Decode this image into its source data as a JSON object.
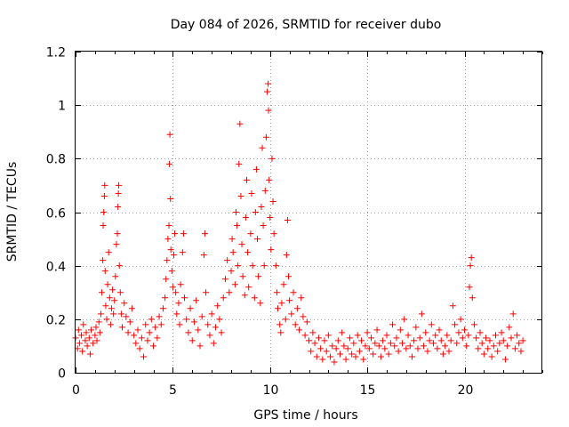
{
  "chart_data": {
    "type": "scatter",
    "title": "Day 084 of 2026, SRMTID for receiver dubo",
    "xlabel": "GPS time / hours",
    "ylabel": "SRMTID / TECUs",
    "xlim": [
      0,
      24
    ],
    "ylim": [
      0,
      1.2
    ],
    "xticks": [
      0,
      5,
      10,
      15,
      20
    ],
    "xtick_labels": [
      "0",
      "5",
      "10",
      "15",
      "20"
    ],
    "yticks": [
      0,
      0.2,
      0.4,
      0.6,
      0.8,
      1,
      1.2
    ],
    "ytick_labels": [
      "0",
      "0.2",
      "0.4",
      "0.6",
      "0.8",
      "1",
      "1.2"
    ],
    "grid": true,
    "marker": "plus",
    "series": [
      {
        "name": "SRMTID",
        "color": "#ff0000",
        "points": [
          [
            0.0,
            0.13
          ],
          [
            0.1,
            0.09
          ],
          [
            0.15,
            0.16
          ],
          [
            0.2,
            0.11
          ],
          [
            0.3,
            0.14
          ],
          [
            0.35,
            0.08
          ],
          [
            0.4,
            0.18
          ],
          [
            0.5,
            0.12
          ],
          [
            0.55,
            0.15
          ],
          [
            0.6,
            0.1
          ],
          [
            0.7,
            0.13
          ],
          [
            0.75,
            0.07
          ],
          [
            0.8,
            0.16
          ],
          [
            0.9,
            0.11
          ],
          [
            1.0,
            0.14
          ],
          [
            1.05,
            0.17
          ],
          [
            1.1,
            0.12
          ],
          [
            1.2,
            0.19
          ],
          [
            1.25,
            0.15
          ],
          [
            1.3,
            0.22
          ],
          [
            1.35,
            0.3
          ],
          [
            1.4,
            0.42
          ],
          [
            1.42,
            0.55
          ],
          [
            1.45,
            0.6
          ],
          [
            1.48,
            0.66
          ],
          [
            1.5,
            0.7
          ],
          [
            1.52,
            0.38
          ],
          [
            1.55,
            0.25
          ],
          [
            1.6,
            0.2
          ],
          [
            1.65,
            0.33
          ],
          [
            1.7,
            0.45
          ],
          [
            1.75,
            0.28
          ],
          [
            1.8,
            0.18
          ],
          [
            1.85,
            0.24
          ],
          [
            1.9,
            0.31
          ],
          [
            1.95,
            0.22
          ],
          [
            2.0,
            0.27
          ],
          [
            2.05,
            0.36
          ],
          [
            2.1,
            0.48
          ],
          [
            2.15,
            0.52
          ],
          [
            2.18,
            0.62
          ],
          [
            2.2,
            0.67
          ],
          [
            2.22,
            0.7
          ],
          [
            2.25,
            0.4
          ],
          [
            2.3,
            0.3
          ],
          [
            2.35,
            0.22
          ],
          [
            2.4,
            0.17
          ],
          [
            2.5,
            0.26
          ],
          [
            2.6,
            0.21
          ],
          [
            2.7,
            0.15
          ],
          [
            2.8,
            0.19
          ],
          [
            2.9,
            0.24
          ],
          [
            3.0,
            0.14
          ],
          [
            3.1,
            0.11
          ],
          [
            3.2,
            0.16
          ],
          [
            3.3,
            0.09
          ],
          [
            3.4,
            0.13
          ],
          [
            3.5,
            0.06
          ],
          [
            3.6,
            0.18
          ],
          [
            3.7,
            0.12
          ],
          [
            3.8,
            0.15
          ],
          [
            3.9,
            0.2
          ],
          [
            4.0,
            0.1
          ],
          [
            4.1,
            0.17
          ],
          [
            4.2,
            0.13
          ],
          [
            4.3,
            0.21
          ],
          [
            4.4,
            0.18
          ],
          [
            4.5,
            0.24
          ],
          [
            4.6,
            0.28
          ],
          [
            4.65,
            0.35
          ],
          [
            4.7,
            0.42
          ],
          [
            4.75,
            0.5
          ],
          [
            4.8,
            0.55
          ],
          [
            4.82,
            0.78
          ],
          [
            4.85,
            0.89
          ],
          [
            4.88,
            0.65
          ],
          [
            4.9,
            0.46
          ],
          [
            4.95,
            0.38
          ],
          [
            5.0,
            0.32
          ],
          [
            5.05,
            0.44
          ],
          [
            5.1,
            0.52
          ],
          [
            5.15,
            0.3
          ],
          [
            5.2,
            0.22
          ],
          [
            5.3,
            0.26
          ],
          [
            5.35,
            0.18
          ],
          [
            5.4,
            0.33
          ],
          [
            5.5,
            0.45
          ],
          [
            5.55,
            0.52
          ],
          [
            5.6,
            0.28
          ],
          [
            5.7,
            0.2
          ],
          [
            5.8,
            0.15
          ],
          [
            5.9,
            0.24
          ],
          [
            6.0,
            0.12
          ],
          [
            6.1,
            0.19
          ],
          [
            6.2,
            0.27
          ],
          [
            6.3,
            0.16
          ],
          [
            6.4,
            0.1
          ],
          [
            6.5,
            0.21
          ],
          [
            6.6,
            0.44
          ],
          [
            6.65,
            0.52
          ],
          [
            6.7,
            0.3
          ],
          [
            6.8,
            0.18
          ],
          [
            6.9,
            0.14
          ],
          [
            7.0,
            0.22
          ],
          [
            7.1,
            0.11
          ],
          [
            7.2,
            0.17
          ],
          [
            7.3,
            0.25
          ],
          [
            7.4,
            0.2
          ],
          [
            7.5,
            0.15
          ],
          [
            7.6,
            0.28
          ],
          [
            7.7,
            0.35
          ],
          [
            7.8,
            0.42
          ],
          [
            7.9,
            0.3
          ],
          [
            8.0,
            0.38
          ],
          [
            8.05,
            0.5
          ],
          [
            8.1,
            0.45
          ],
          [
            8.2,
            0.33
          ],
          [
            8.25,
            0.6
          ],
          [
            8.3,
            0.55
          ],
          [
            8.35,
            0.4
          ],
          [
            8.4,
            0.78
          ],
          [
            8.45,
            0.93
          ],
          [
            8.5,
            0.66
          ],
          [
            8.55,
            0.48
          ],
          [
            8.6,
            0.36
          ],
          [
            8.7,
            0.29
          ],
          [
            8.75,
            0.58
          ],
          [
            8.8,
            0.72
          ],
          [
            8.85,
            0.45
          ],
          [
            8.9,
            0.32
          ],
          [
            9.0,
            0.52
          ],
          [
            9.05,
            0.67
          ],
          [
            9.1,
            0.4
          ],
          [
            9.2,
            0.28
          ],
          [
            9.25,
            0.6
          ],
          [
            9.3,
            0.76
          ],
          [
            9.35,
            0.5
          ],
          [
            9.4,
            0.36
          ],
          [
            9.5,
            0.26
          ],
          [
            9.55,
            0.62
          ],
          [
            9.6,
            0.84
          ],
          [
            9.65,
            0.55
          ],
          [
            9.7,
            0.4
          ],
          [
            9.75,
            0.68
          ],
          [
            9.8,
            0.88
          ],
          [
            9.85,
            1.05
          ],
          [
            9.9,
            1.08
          ],
          [
            9.92,
            0.98
          ],
          [
            9.95,
            0.72
          ],
          [
            10.0,
            0.58
          ],
          [
            10.05,
            0.46
          ],
          [
            10.1,
            0.8
          ],
          [
            10.15,
            0.64
          ],
          [
            10.2,
            0.52
          ],
          [
            10.3,
            0.4
          ],
          [
            10.35,
            0.3
          ],
          [
            10.4,
            0.24
          ],
          [
            10.5,
            0.18
          ],
          [
            10.55,
            0.15
          ],
          [
            10.6,
            0.26
          ],
          [
            10.7,
            0.33
          ],
          [
            10.8,
            0.2
          ],
          [
            10.85,
            0.44
          ],
          [
            10.9,
            0.57
          ],
          [
            10.95,
            0.36
          ],
          [
            11.0,
            0.27
          ],
          [
            11.1,
            0.22
          ],
          [
            11.2,
            0.3
          ],
          [
            11.3,
            0.18
          ],
          [
            11.4,
            0.24
          ],
          [
            11.5,
            0.16
          ],
          [
            11.6,
            0.28
          ],
          [
            11.7,
            0.21
          ],
          [
            11.8,
            0.14
          ],
          [
            11.9,
            0.19
          ],
          [
            12.0,
            0.12
          ],
          [
            12.1,
            0.08
          ],
          [
            12.2,
            0.15
          ],
          [
            12.3,
            0.11
          ],
          [
            12.4,
            0.06
          ],
          [
            12.5,
            0.13
          ],
          [
            12.6,
            0.09
          ],
          [
            12.7,
            0.05
          ],
          [
            12.8,
            0.12
          ],
          [
            12.9,
            0.08
          ],
          [
            13.0,
            0.14
          ],
          [
            13.1,
            0.06
          ],
          [
            13.2,
            0.1
          ],
          [
            13.3,
            0.04
          ],
          [
            13.4,
            0.09
          ],
          [
            13.5,
            0.12
          ],
          [
            13.6,
            0.07
          ],
          [
            13.7,
            0.15
          ],
          [
            13.8,
            0.1
          ],
          [
            13.9,
            0.05
          ],
          [
            14.0,
            0.09
          ],
          [
            14.1,
            0.13
          ],
          [
            14.2,
            0.07
          ],
          [
            14.3,
            0.11
          ],
          [
            14.4,
            0.06
          ],
          [
            14.5,
            0.14
          ],
          [
            14.6,
            0.08
          ],
          [
            14.7,
            0.12
          ],
          [
            14.8,
            0.05
          ],
          [
            14.9,
            0.1
          ],
          [
            15.0,
            0.15
          ],
          [
            15.1,
            0.09
          ],
          [
            15.2,
            0.13
          ],
          [
            15.3,
            0.07
          ],
          [
            15.4,
            0.11
          ],
          [
            15.5,
            0.16
          ],
          [
            15.6,
            0.1
          ],
          [
            15.7,
            0.06
          ],
          [
            15.8,
            0.12
          ],
          [
            15.9,
            0.09
          ],
          [
            16.0,
            0.14
          ],
          [
            16.1,
            0.07
          ],
          [
            16.2,
            0.11
          ],
          [
            16.3,
            0.18
          ],
          [
            16.4,
            0.1
          ],
          [
            16.5,
            0.13
          ],
          [
            16.6,
            0.08
          ],
          [
            16.7,
            0.16
          ],
          [
            16.8,
            0.11
          ],
          [
            16.9,
            0.2
          ],
          [
            17.0,
            0.09
          ],
          [
            17.1,
            0.14
          ],
          [
            17.2,
            0.1
          ],
          [
            17.3,
            0.06
          ],
          [
            17.4,
            0.12
          ],
          [
            17.5,
            0.17
          ],
          [
            17.6,
            0.09
          ],
          [
            17.7,
            0.13
          ],
          [
            17.8,
            0.22
          ],
          [
            17.9,
            0.1
          ],
          [
            18.0,
            0.15
          ],
          [
            18.1,
            0.08
          ],
          [
            18.2,
            0.12
          ],
          [
            18.3,
            0.18
          ],
          [
            18.4,
            0.11
          ],
          [
            18.5,
            0.14
          ],
          [
            18.6,
            0.09
          ],
          [
            18.7,
            0.16
          ],
          [
            18.8,
            0.12
          ],
          [
            18.9,
            0.07
          ],
          [
            19.0,
            0.1
          ],
          [
            19.1,
            0.14
          ],
          [
            19.2,
            0.08
          ],
          [
            19.3,
            0.12
          ],
          [
            19.4,
            0.25
          ],
          [
            19.5,
            0.18
          ],
          [
            19.6,
            0.11
          ],
          [
            19.7,
            0.15
          ],
          [
            19.8,
            0.2
          ],
          [
            19.9,
            0.13
          ],
          [
            20.0,
            0.16
          ],
          [
            20.1,
            0.1
          ],
          [
            20.2,
            0.14
          ],
          [
            20.25,
            0.32
          ],
          [
            20.3,
            0.4
          ],
          [
            20.35,
            0.43
          ],
          [
            20.4,
            0.28
          ],
          [
            20.5,
            0.18
          ],
          [
            20.6,
            0.13
          ],
          [
            20.7,
            0.09
          ],
          [
            20.8,
            0.15
          ],
          [
            20.9,
            0.11
          ],
          [
            21.0,
            0.07
          ],
          [
            21.1,
            0.13
          ],
          [
            21.2,
            0.09
          ],
          [
            21.3,
            0.12
          ],
          [
            21.4,
            0.06
          ],
          [
            21.5,
            0.1
          ],
          [
            21.6,
            0.14
          ],
          [
            21.7,
            0.08
          ],
          [
            21.8,
            0.11
          ],
          [
            21.9,
            0.15
          ],
          [
            22.0,
            0.12
          ],
          [
            22.1,
            0.05
          ],
          [
            22.2,
            0.1
          ],
          [
            22.3,
            0.17
          ],
          [
            22.4,
            0.13
          ],
          [
            22.5,
            0.22
          ],
          [
            22.6,
            0.09
          ],
          [
            22.7,
            0.14
          ],
          [
            22.8,
            0.11
          ],
          [
            22.9,
            0.08
          ],
          [
            23.0,
            0.12
          ]
        ]
      }
    ]
  }
}
